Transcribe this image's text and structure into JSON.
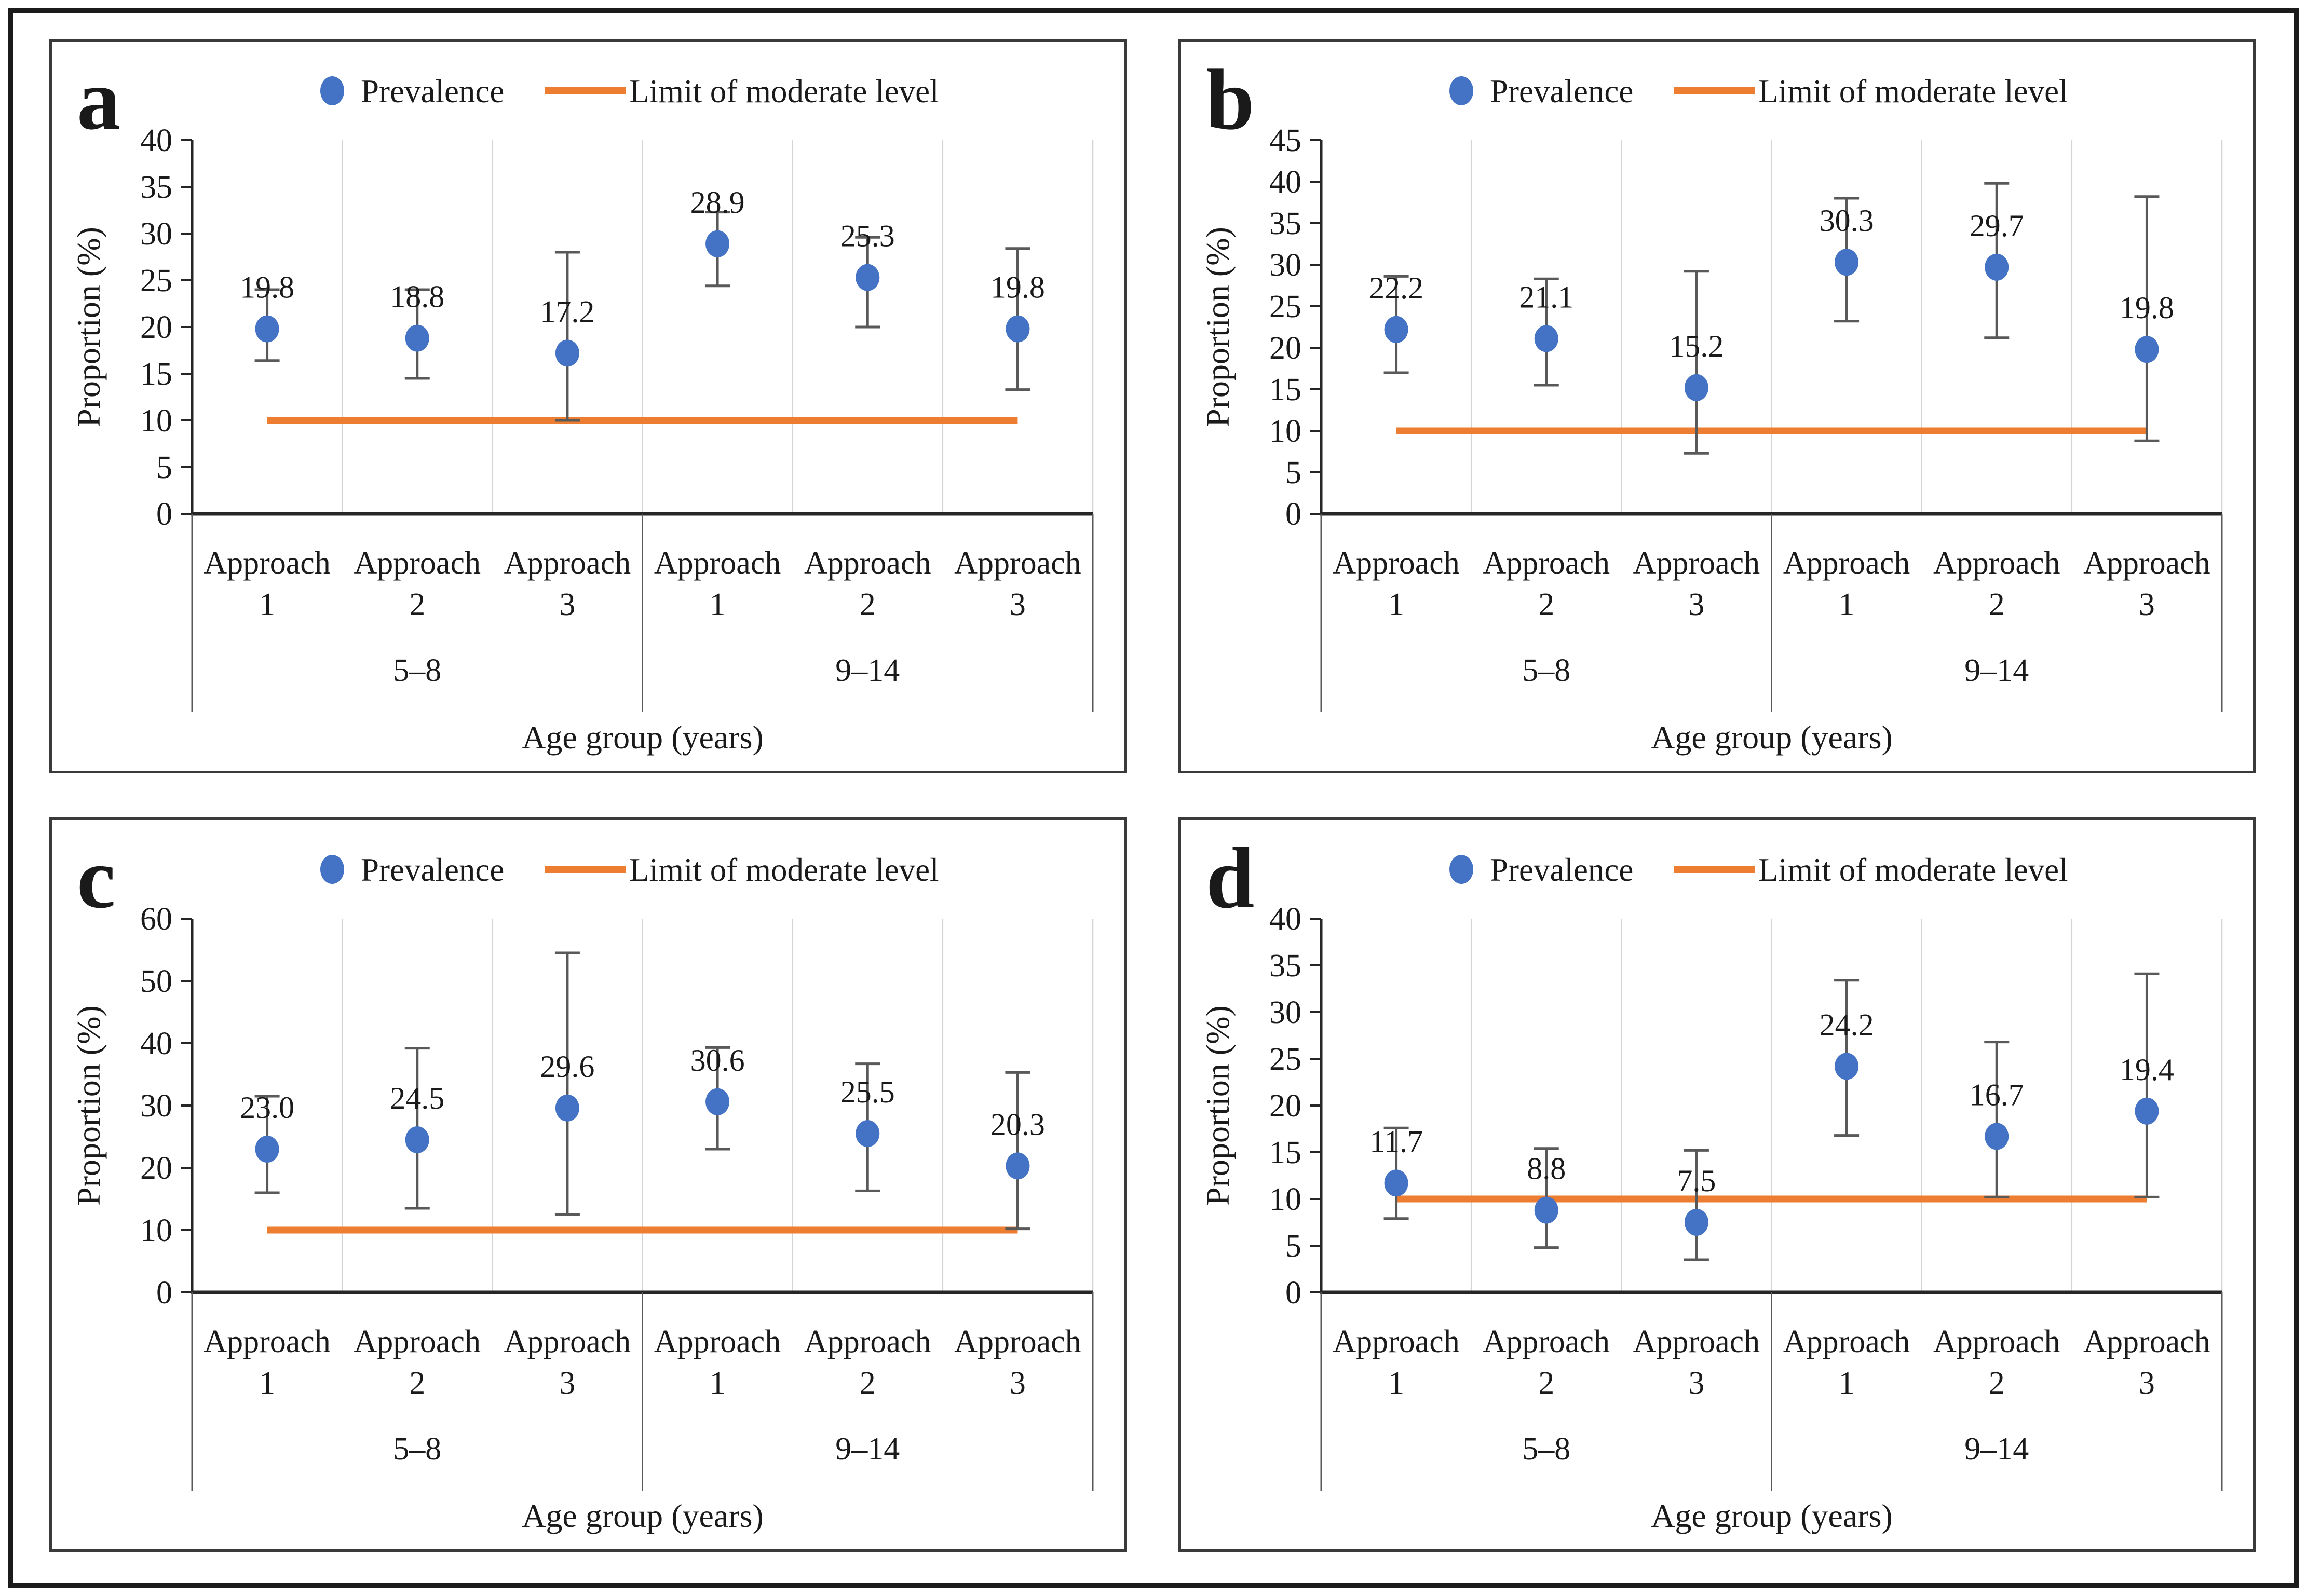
{
  "style": {
    "marker_color": "#4472C4",
    "limit_color": "#ED7D31",
    "error_color": "#595959",
    "grid_color": "#D4D4D4",
    "axis_color": "#262626",
    "divider_color": "#595959"
  },
  "chart_data": [
    {
      "type": "scatter",
      "panel_letter": "a",
      "legend": [
        "Prevalence",
        "Limit of moderate level"
      ],
      "xlabel": "Age group (years)",
      "ylabel": "Proportion (%)",
      "ylim": [
        0,
        40
      ],
      "ytick_step": 5,
      "grid": true,
      "legend_position": "top",
      "groups": [
        "5–8",
        "9–14"
      ],
      "categories": [
        "Approach 1",
        "Approach 2",
        "Approach 3",
        "Approach 1",
        "Approach 2",
        "Approach 3"
      ],
      "limit_value": 10,
      "points": [
        {
          "label": "19.8",
          "value": 19.8,
          "ci_low": 16.4,
          "ci_high": 24.0
        },
        {
          "label": "18.8",
          "value": 18.8,
          "ci_low": 14.5,
          "ci_high": 24.0
        },
        {
          "label": "17.2",
          "value": 17.2,
          "ci_low": 10.0,
          "ci_high": 28.0
        },
        {
          "label": "28.9",
          "value": 28.9,
          "ci_low": 24.4,
          "ci_high": 32.3
        },
        {
          "label": "25.3",
          "value": 25.3,
          "ci_low": 20.0,
          "ci_high": 29.6
        },
        {
          "label": "19.8",
          "value": 19.8,
          "ci_low": 13.3,
          "ci_high": 28.4
        }
      ]
    },
    {
      "type": "scatter",
      "panel_letter": "b",
      "legend": [
        "Prevalence",
        "Limit of moderate level"
      ],
      "xlabel": "Age group (years)",
      "ylabel": "Proportion (%)",
      "ylim": [
        0,
        45
      ],
      "ytick_step": 5,
      "grid": true,
      "legend_position": "top",
      "groups": [
        "5–8",
        "9–14"
      ],
      "categories": [
        "Approach 1",
        "Approach 2",
        "Approach 3",
        "Approach 1",
        "Approach 2",
        "Approach 3"
      ],
      "limit_value": 10,
      "points": [
        {
          "label": "22.2",
          "value": 22.2,
          "ci_low": 17.0,
          "ci_high": 28.6
        },
        {
          "label": "21.1",
          "value": 21.1,
          "ci_low": 15.5,
          "ci_high": 28.3
        },
        {
          "label": "15.2",
          "value": 15.2,
          "ci_low": 7.3,
          "ci_high": 29.2
        },
        {
          "label": "30.3",
          "value": 30.3,
          "ci_low": 23.2,
          "ci_high": 38.0
        },
        {
          "label": "29.7",
          "value": 29.7,
          "ci_low": 21.2,
          "ci_high": 39.8
        },
        {
          "label": "19.8",
          "value": 19.8,
          "ci_low": 8.8,
          "ci_high": 38.2
        }
      ]
    },
    {
      "type": "scatter",
      "panel_letter": "c",
      "legend": [
        "Prevalence",
        "Limit of moderate level"
      ],
      "xlabel": "Age group (years)",
      "ylabel": "Proportion (%)",
      "ylim": [
        0,
        60
      ],
      "ytick_step": 10,
      "grid": true,
      "legend_position": "top",
      "groups": [
        "5–8",
        "9–14"
      ],
      "categories": [
        "Approach 1",
        "Approach 2",
        "Approach 3",
        "Approach 1",
        "Approach 2",
        "Approach 3"
      ],
      "limit_value": 10,
      "points": [
        {
          "label": "23.0",
          "value": 23.0,
          "ci_low": 16.0,
          "ci_high": 31.5
        },
        {
          "label": "24.5",
          "value": 24.5,
          "ci_low": 13.5,
          "ci_high": 39.2
        },
        {
          "label": "29.6",
          "value": 29.6,
          "ci_low": 12.5,
          "ci_high": 54.5
        },
        {
          "label": "30.6",
          "value": 30.6,
          "ci_low": 23.0,
          "ci_high": 39.3
        },
        {
          "label": "25.5",
          "value": 25.5,
          "ci_low": 16.3,
          "ci_high": 36.7
        },
        {
          "label": "20.3",
          "value": 20.3,
          "ci_low": 10.2,
          "ci_high": 35.3
        }
      ]
    },
    {
      "type": "scatter",
      "panel_letter": "d",
      "legend": [
        "Prevalence",
        "Limit of moderate level"
      ],
      "xlabel": "Age group (years)",
      "ylabel": "Proportion (%)",
      "ylim": [
        0,
        40
      ],
      "ytick_step": 5,
      "grid": true,
      "legend_position": "top",
      "groups": [
        "5–8",
        "9–14"
      ],
      "categories": [
        "Approach 1",
        "Approach 2",
        "Approach 3",
        "Approach 1",
        "Approach 2",
        "Approach 3"
      ],
      "limit_value": 10,
      "points": [
        {
          "label": "11.7",
          "value": 11.7,
          "ci_low": 7.9,
          "ci_high": 17.6
        },
        {
          "label": "8.8",
          "value": 8.8,
          "ci_low": 4.8,
          "ci_high": 15.4
        },
        {
          "label": "7.5",
          "value": 7.5,
          "ci_low": 3.5,
          "ci_high": 15.2
        },
        {
          "label": "24.2",
          "value": 24.2,
          "ci_low": 16.8,
          "ci_high": 33.4
        },
        {
          "label": "16.7",
          "value": 16.7,
          "ci_low": 10.2,
          "ci_high": 26.8
        },
        {
          "label": "19.4",
          "value": 19.4,
          "ci_low": 10.2,
          "ci_high": 34.1
        }
      ]
    }
  ]
}
